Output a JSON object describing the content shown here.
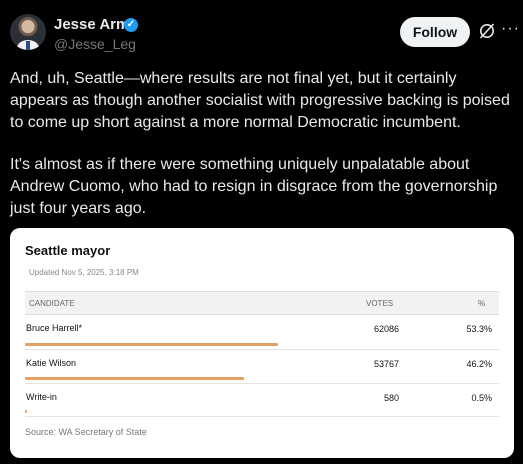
{
  "author": {
    "display_name": "Jesse Arm",
    "handle": "@Jesse_Leg"
  },
  "actions": {
    "follow_label": "Follow",
    "grok_icon": "grok-icon",
    "more_icon": "more-icon"
  },
  "tweet": {
    "paragraph1": "And, uh, Seattle—where results are not final yet, but it certainly appears as though another socialist with progressive backing is poised to come up short against a more normal Democratic incumbent.",
    "paragraph2": "It's almost as if there were something uniquely unpalatable about Andrew Cuomo, who had to resign in disgrace from the governorship just four years ago."
  },
  "card": {
    "title": "Seattle mayor",
    "updated": "Updated Nov 5, 2025, 3:18 PM",
    "headers": {
      "candidate": "CANDIDATE",
      "votes": "VOTES",
      "percent": "%"
    },
    "rows": [
      {
        "name": "Bruce Harrell*",
        "votes": "62086",
        "percent": "53.3%",
        "share": 53.3
      },
      {
        "name": "Katie Wilson",
        "votes": "53767",
        "percent": "46.2%",
        "share": 46.2
      },
      {
        "name": "Write-in",
        "votes": "580",
        "percent": "0.5%",
        "share": 0.5
      }
    ],
    "source": "Source: WA Secretary of State"
  },
  "colors": {
    "bar": "#e3a261",
    "verified": "#1d9bf0",
    "background": "#000000"
  }
}
